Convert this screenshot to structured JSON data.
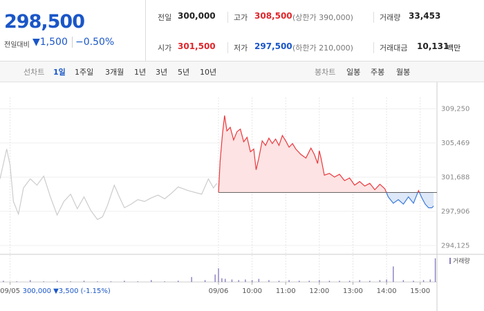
{
  "header": {
    "price": "298,500",
    "change_label": "전일대비",
    "change": "▼1,500",
    "change_pct": "−0.50%",
    "stats": [
      {
        "label": "전일",
        "value": "300,000"
      },
      {
        "label": "고가",
        "value": "308,500",
        "note": "(상한가 390,000)"
      },
      {
        "label": "거래량",
        "value": "33,453"
      },
      {
        "label": "시가",
        "value": "301,500"
      },
      {
        "label": "저가",
        "value": "297,500",
        "note": "(하한가 210,000)"
      },
      {
        "label": "거래대금",
        "value": "10,131",
        "unit": "백만"
      }
    ]
  },
  "toolbar": {
    "line_chart": "선차트",
    "periods": [
      "1일",
      "1주일",
      "3개월",
      "1년",
      "3년",
      "5년",
      "10년"
    ],
    "selected": 0,
    "candle_chart": "봉차트",
    "candle_periods": [
      "일봉",
      "주봉",
      "월봉"
    ]
  },
  "chart_data": {
    "type": "line",
    "prev_day_note": "300,000 ▼3,500 (-1.15%)",
    "baseline": 300000,
    "xlim": [
      -6.5,
      6.5
    ],
    "xticks": [
      {
        "value": -6.2,
        "label": "09/05"
      },
      {
        "value": 0,
        "label": "09/06"
      },
      {
        "value": 1,
        "label": "10:00"
      },
      {
        "value": 2,
        "label": "11:00"
      },
      {
        "value": 3,
        "label": "12:00"
      },
      {
        "value": 4,
        "label": "13:00"
      },
      {
        "value": 5,
        "label": "14:00"
      },
      {
        "value": 6,
        "label": "15:00"
      }
    ],
    "ylim": [
      293000,
      310500
    ],
    "yticks": [
      {
        "value": 294125,
        "label": "294,125"
      },
      {
        "value": 297906,
        "label": "297,906"
      },
      {
        "value": 301688,
        "label": "301,688"
      },
      {
        "value": 305469,
        "label": "305,469"
      },
      {
        "value": 309250,
        "label": "309,250"
      }
    ],
    "vlim": [
      0,
      40
    ],
    "series": [
      {
        "color": "#cccccc",
        "x": [
          -6.5,
          -6.3,
          -6.2,
          -6.1,
          -5.95,
          -5.8,
          -5.6,
          -5.4,
          -5.2,
          -5.0,
          -4.8,
          -4.6,
          -4.4,
          -4.2,
          -4.0,
          -3.8,
          -3.6,
          -3.45,
          -3.3,
          -3.1,
          -2.95,
          -2.8,
          -2.6,
          -2.4,
          -2.2,
          -2.0,
          -1.8,
          -1.6,
          -1.4,
          -1.2,
          -0.9,
          -0.5,
          -0.3,
          -0.15,
          -0.05
        ],
        "values": [
          301500,
          304800,
          303000,
          299000,
          297600,
          300500,
          301500,
          300800,
          301800,
          299500,
          297500,
          299000,
          299800,
          298200,
          299500,
          298000,
          297000,
          297300,
          298600,
          300800,
          299500,
          298300,
          298700,
          299200,
          299000,
          299400,
          299700,
          299300,
          299900,
          300600,
          300200,
          299800,
          301500,
          300500,
          301000
        ]
      },
      {
        "color": "#e8383d",
        "down_color": "#3b7bd9",
        "fill": "#fde3e3",
        "down_fill": "#dde8f8",
        "x": [
          0,
          0.05,
          0.12,
          0.18,
          0.25,
          0.35,
          0.45,
          0.55,
          0.65,
          0.75,
          0.85,
          0.95,
          1.05,
          1.12,
          1.2,
          1.3,
          1.4,
          1.5,
          1.6,
          1.7,
          1.8,
          1.9,
          2.0,
          2.1,
          2.2,
          2.3,
          2.45,
          2.6,
          2.75,
          2.85,
          2.95,
          3.0,
          3.05,
          3.15,
          3.3,
          3.45,
          3.6,
          3.75,
          3.9,
          4.05,
          4.2,
          4.35,
          4.5,
          4.65,
          4.8,
          4.95,
          5.05,
          5.2,
          5.35,
          5.5,
          5.65,
          5.8,
          5.95,
          6.05,
          6.15,
          6.25,
          6.35,
          6.4
        ],
        "values": [
          300000,
          303500,
          306500,
          308500,
          306800,
          307200,
          305800,
          306700,
          307000,
          305600,
          306100,
          304500,
          304800,
          302500,
          303800,
          305700,
          305200,
          306000,
          305400,
          305900,
          305200,
          306300,
          305700,
          305000,
          305400,
          304800,
          304200,
          303800,
          304900,
          304200,
          303200,
          304600,
          303800,
          301900,
          302100,
          301700,
          302000,
          301300,
          301600,
          300800,
          301200,
          300700,
          301000,
          300300,
          300900,
          300400,
          299500,
          298800,
          299200,
          298700,
          299500,
          298800,
          300200,
          299400,
          298700,
          298300,
          298300,
          298500
        ]
      },
      {
        "name": "거래량",
        "type": "bar",
        "color": "#8a7cc0",
        "x": [
          -6.4,
          -6.0,
          -5.6,
          -5.2,
          -4.8,
          -4.4,
          -4.0,
          -3.6,
          -3.2,
          -2.8,
          -2.4,
          -2.0,
          -1.6,
          -1.2,
          -0.8,
          -0.4,
          -0.1,
          0,
          0.1,
          0.2,
          0.4,
          0.6,
          0.8,
          1.0,
          1.2,
          1.5,
          1.8,
          2.1,
          2.4,
          2.7,
          3.0,
          3.3,
          3.6,
          3.9,
          4.2,
          4.5,
          4.8,
          5.0,
          5.2,
          5.5,
          5.8,
          6.1,
          6.3,
          6.45
        ],
        "values": [
          2,
          1,
          3,
          1,
          2,
          1,
          2,
          1,
          1,
          2,
          1,
          3,
          1,
          2,
          8,
          3,
          12,
          22,
          6,
          5,
          4,
          3,
          4,
          3,
          5,
          3,
          2,
          3,
          2,
          2,
          3,
          2,
          2,
          2,
          3,
          2,
          3,
          4,
          25,
          3,
          2,
          3,
          4,
          38
        ]
      }
    ]
  }
}
